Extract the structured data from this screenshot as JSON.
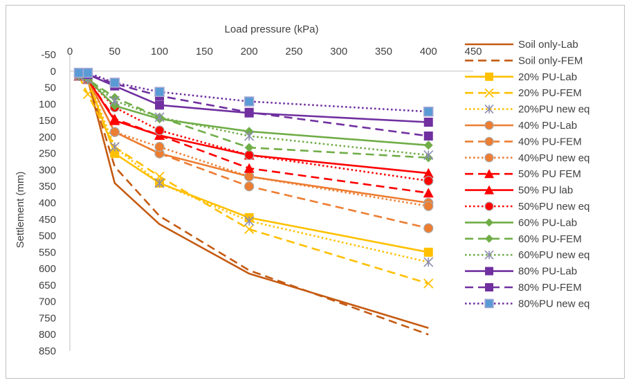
{
  "chart_data": {
    "type": "line",
    "title": "",
    "xlabel": "Load pressure (kPa)",
    "ylabel": "Settlement (mm)",
    "xlim": [
      0,
      450
    ],
    "ylim": [
      -50,
      850
    ],
    "y_axis_inverted": true,
    "x_axis_position": "top",
    "x_ticks": [
      "0",
      "50",
      "100",
      "150",
      "200",
      "250",
      "300",
      "350",
      "400",
      "450"
    ],
    "y_ticks": [
      "-50",
      "0",
      "50",
      "100",
      "150",
      "200",
      "250",
      "300",
      "350",
      "400",
      "450",
      "500",
      "550",
      "600",
      "650",
      "700",
      "750",
      "800",
      "850"
    ],
    "grid": false,
    "legend_position": "right",
    "x": [
      10,
      20,
      50,
      100,
      200,
      400
    ],
    "series": [
      {
        "name": "Soil only-Lab",
        "color": "#c55a11",
        "dash": "solid",
        "marker": "none",
        "values": [
          15,
          25,
          340,
          465,
          615,
          780
        ]
      },
      {
        "name": "Soil only-FEM",
        "color": "#c55a11",
        "dash": "dash",
        "marker": "none",
        "values": [
          15,
          25,
          290,
          440,
          605,
          800
        ]
      },
      {
        "name": "20% PU-Lab",
        "color": "#ffc000",
        "dash": "solid",
        "marker": "square",
        "values": [
          15,
          25,
          250,
          340,
          445,
          550
        ]
      },
      {
        "name": "20% PU-FEM",
        "color": "#ffc000",
        "dash": "dash",
        "marker": "x",
        "values": [
          15,
          70,
          230,
          320,
          480,
          645
        ]
      },
      {
        "name": "20%PU new eq",
        "color": "#ffc000",
        "dash": "dot",
        "marker": "star",
        "values": [
          15,
          25,
          230,
          340,
          455,
          580
        ]
      },
      {
        "name": "40% PU-Lab",
        "color": "#ed7d31",
        "dash": "solid",
        "marker": "circle",
        "values": [
          15,
          25,
          185,
          250,
          320,
          400
        ]
      },
      {
        "name": "40% PU-FEM",
        "color": "#ed7d31",
        "dash": "dash",
        "marker": "circle",
        "values": [
          15,
          25,
          185,
          250,
          350,
          477
        ]
      },
      {
        "name": "40%PU new eq",
        "color": "#ed7d31",
        "dash": "dot",
        "marker": "circle",
        "values": [
          15,
          25,
          185,
          230,
          320,
          410
        ]
      },
      {
        "name": "50% PU FEM",
        "color": "#ff0000",
        "dash": "dash",
        "marker": "triangle",
        "values": [
          15,
          25,
          145,
          195,
          295,
          370
        ]
      },
      {
        "name": "50% PU lab",
        "color": "#ff0000",
        "dash": "solid",
        "marker": "triangle",
        "values": [
          15,
          25,
          150,
          195,
          255,
          310
        ]
      },
      {
        "name": "50%PU new eq",
        "color": "#ff0000",
        "dash": "dot",
        "marker": "circle",
        "values": [
          15,
          25,
          110,
          180,
          255,
          333
        ]
      },
      {
        "name": "60% PU-Lab",
        "color": "#70ad47",
        "dash": "solid",
        "marker": "diamond",
        "values": [
          15,
          25,
          105,
          145,
          183,
          225
        ]
      },
      {
        "name": "60% PU-FEM",
        "color": "#70ad47",
        "dash": "dash",
        "marker": "diamond",
        "values": [
          15,
          25,
          80,
          140,
          232,
          263
        ]
      },
      {
        "name": "60%PU new eq",
        "color": "#70ad47",
        "dash": "dot",
        "marker": "star",
        "values": [
          15,
          25,
          90,
          140,
          197,
          255
        ]
      },
      {
        "name": "80% PU-Lab",
        "color": "#7030a0",
        "dash": "solid",
        "marker": "square",
        "values": [
          5,
          10,
          45,
          103,
          127,
          155
        ]
      },
      {
        "name": "80% PU-FEM",
        "color": "#7030a0",
        "dash": "dash",
        "marker": "square",
        "values": [
          5,
          10,
          38,
          75,
          125,
          197
        ]
      },
      {
        "name": "80%PU new eq",
        "color": "#7030a0",
        "dash": "dot",
        "marker": "blue-square",
        "values": [
          5,
          5,
          35,
          63,
          92,
          123
        ]
      }
    ]
  }
}
